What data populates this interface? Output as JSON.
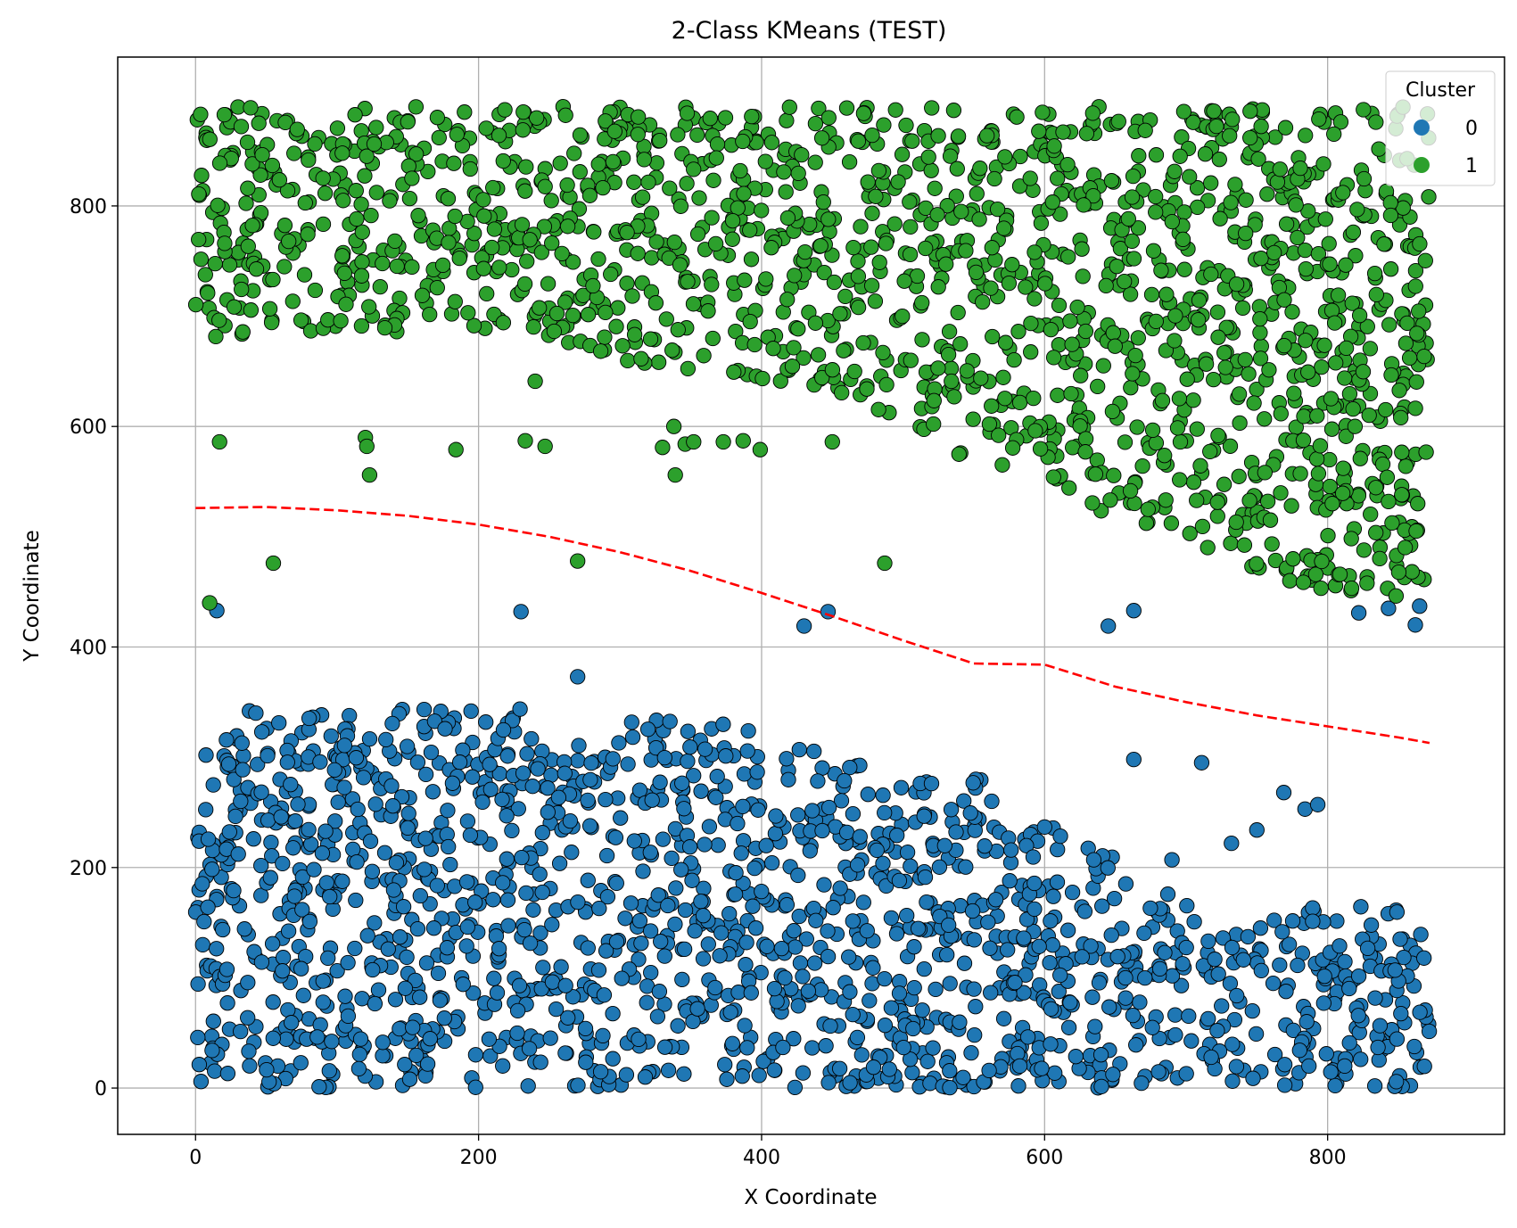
{
  "chart_data": {
    "type": "scatter",
    "title": "2-Class KMeans (TEST)",
    "xlabel": "X Coordinate",
    "ylabel": "Y Coordinate",
    "xlim": [
      -55,
      925
    ],
    "ylim": [
      -42,
      935
    ],
    "xticks": [
      0,
      200,
      400,
      600,
      800
    ],
    "yticks": [
      0,
      200,
      400,
      600,
      800
    ],
    "grid": true,
    "legend": {
      "title": "Cluster",
      "position": "top-right",
      "entries": [
        "0",
        "1"
      ]
    },
    "colors": {
      "cluster_0": "#1f77b4",
      "cluster_1": "#2ca02c",
      "boundary": "#ff0000"
    },
    "x_range_of_points": [
      0,
      872
    ],
    "series": [
      {
        "name": "0",
        "approx_point_count": 1600,
        "upper_edge": [
          [
            0,
            340
          ],
          [
            100,
            350
          ],
          [
            150,
            425
          ],
          [
            200,
            420
          ],
          [
            250,
            300
          ],
          [
            300,
            340
          ],
          [
            380,
            330
          ],
          [
            450,
            300
          ],
          [
            500,
            285
          ],
          [
            560,
            280
          ],
          [
            620,
            230
          ],
          [
            680,
            200
          ],
          [
            720,
            140
          ],
          [
            800,
            170
          ],
          [
            872,
            160
          ]
        ],
        "outliers": [
          [
            15,
            433
          ],
          [
            270,
            373
          ],
          [
            230,
            432
          ],
          [
            430,
            419
          ],
          [
            447,
            432
          ],
          [
            645,
            419
          ],
          [
            663,
            433
          ],
          [
            822,
            431
          ],
          [
            843,
            435
          ],
          [
            862,
            420
          ],
          [
            865,
            437
          ],
          [
            663,
            298
          ],
          [
            711,
            295
          ],
          [
            769,
            268
          ],
          [
            784,
            253
          ],
          [
            793,
            257
          ],
          [
            750,
            234
          ],
          [
            732,
            222
          ],
          [
            690,
            207
          ]
        ]
      },
      {
        "name": "1",
        "approx_point_count": 1600,
        "lower_edge": [
          [
            0,
            680
          ],
          [
            100,
            680
          ],
          [
            200,
            690
          ],
          [
            300,
            660
          ],
          [
            400,
            640
          ],
          [
            500,
            600
          ],
          [
            600,
            535
          ],
          [
            650,
            520
          ],
          [
            700,
            500
          ],
          [
            760,
            460
          ],
          [
            800,
            450
          ],
          [
            872,
            440
          ]
        ],
        "outliers": [
          [
            10,
            440
          ],
          [
            17,
            586
          ],
          [
            55,
            476
          ],
          [
            120,
            590
          ],
          [
            121,
            582
          ],
          [
            123,
            556
          ],
          [
            184,
            579
          ],
          [
            233,
            587
          ],
          [
            247,
            582
          ],
          [
            240,
            641
          ],
          [
            270,
            478
          ],
          [
            338,
            600
          ],
          [
            339,
            556
          ],
          [
            330,
            581
          ],
          [
            346,
            584
          ],
          [
            352,
            586
          ],
          [
            373,
            586
          ],
          [
            387,
            587
          ],
          [
            399,
            579
          ],
          [
            450,
            586
          ],
          [
            487,
            476
          ]
        ]
      }
    ],
    "boundary": {
      "style": "dashed",
      "x": [
        0,
        50,
        100,
        150,
        200,
        250,
        300,
        350,
        400,
        450,
        500,
        550,
        600,
        650,
        700,
        750,
        800,
        850,
        872
      ],
      "y": [
        526,
        527,
        524,
        519,
        511,
        500,
        486,
        469,
        449,
        428,
        406,
        385,
        384,
        364,
        350,
        338,
        328,
        318,
        313
      ]
    }
  }
}
